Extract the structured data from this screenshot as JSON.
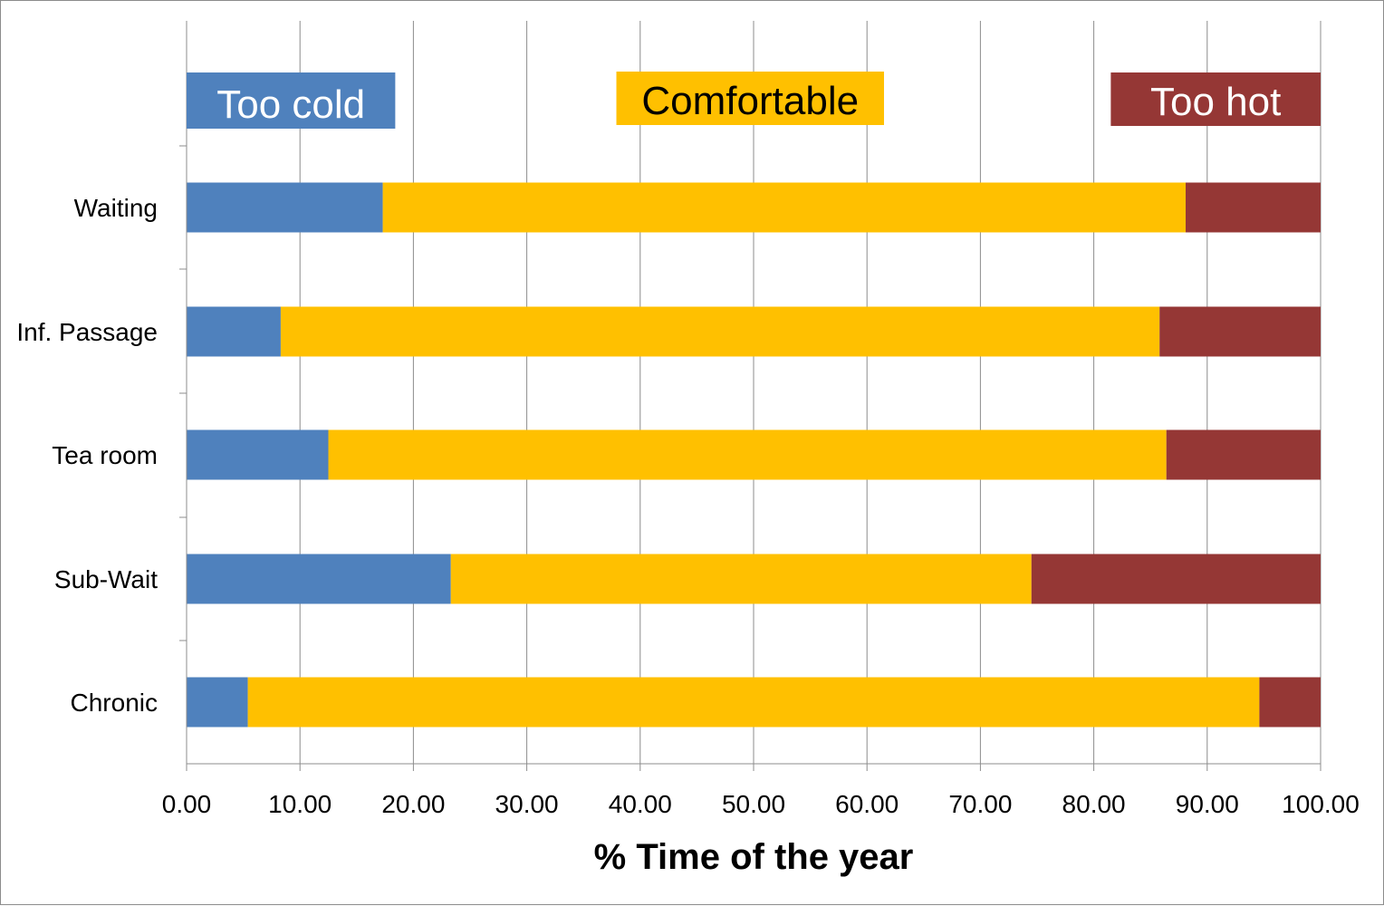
{
  "chart_data": {
    "type": "bar",
    "orientation": "horizontal",
    "stacked": true,
    "categories": [
      "Waiting",
      "Inf. Passage",
      "Tea room",
      "Sub-Wait",
      "Chronic"
    ],
    "series": [
      {
        "name": "Too cold",
        "color": "#4f81bd",
        "values": [
          17.3,
          8.3,
          12.5,
          23.3,
          5.4
        ]
      },
      {
        "name": "Comfortable",
        "color": "#ffc000",
        "values": [
          70.8,
          77.5,
          73.9,
          51.2,
          89.2
        ]
      },
      {
        "name": "Too hot",
        "color": "#953735",
        "values": [
          11.9,
          14.2,
          13.6,
          25.5,
          5.4
        ]
      }
    ],
    "xlabel": "% Time of the year",
    "ylabel": "",
    "xlim": [
      0,
      100
    ],
    "xticks": [
      "0.00",
      "10.00",
      "20.00",
      "30.00",
      "40.00",
      "50.00",
      "60.00",
      "70.00",
      "80.00",
      "90.00",
      "100.00"
    ],
    "grid": true,
    "legend_position": "top"
  },
  "colors": {
    "legend_text_cold": "#ffffff",
    "legend_text_comfortable": "#000000",
    "legend_text_hot": "#ffffff",
    "gridline": "#8c8c8c"
  }
}
